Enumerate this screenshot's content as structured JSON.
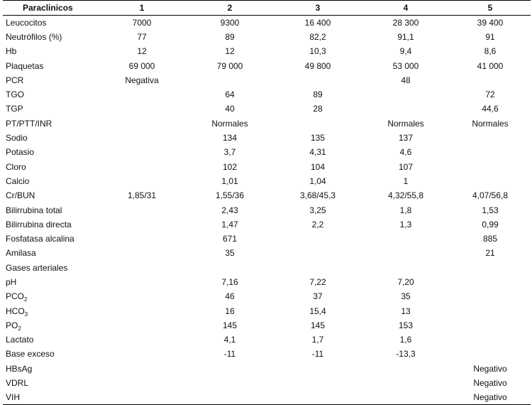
{
  "table": {
    "columns": [
      "Paraclinicos",
      "1",
      "2",
      "3",
      "4",
      "5"
    ],
    "rows": [
      {
        "name": "Leucocitos",
        "values": [
          "7000",
          "9300",
          "16 400",
          "28 300",
          "39 400"
        ]
      },
      {
        "name": "Neutrófilos (%)",
        "values": [
          "77",
          "89",
          "82,2",
          "91,1",
          "91"
        ]
      },
      {
        "name": "Hb",
        "values": [
          "12",
          "12",
          "10,3",
          "9,4",
          "8,6"
        ]
      },
      {
        "name": "Plaquetas",
        "values": [
          "69 000",
          "79 000",
          "49 800",
          "53 000",
          "41 000"
        ]
      },
      {
        "name": "PCR",
        "values": [
          "Negativa",
          "",
          "",
          "48",
          ""
        ]
      },
      {
        "name": "TGO",
        "values": [
          "",
          "64",
          "89",
          "",
          "72"
        ]
      },
      {
        "name": "TGP",
        "values": [
          "",
          "40",
          "28",
          "",
          "44,6"
        ]
      },
      {
        "name": "PT/PTT/INR",
        "values": [
          "",
          "Normales",
          "",
          "Normales",
          "Normales"
        ]
      },
      {
        "name": "Sodio",
        "values": [
          "",
          "134",
          "135",
          "137",
          ""
        ]
      },
      {
        "name": "Potasio",
        "values": [
          "",
          "3,7",
          "4,31",
          "4,6",
          ""
        ]
      },
      {
        "name": "Cloro",
        "values": [
          "",
          "102",
          "104",
          "107",
          ""
        ]
      },
      {
        "name": "Calcio",
        "values": [
          "",
          "1,01",
          "1,04",
          "1",
          ""
        ]
      },
      {
        "name": "Cr/BUN",
        "values": [
          "1,85/31",
          "1,55/36",
          "3,68/45,3",
          "4,32/55,8",
          "4,07/56,8"
        ]
      },
      {
        "name": "Bilirrubina total",
        "values": [
          "",
          "2,43",
          "3,25",
          "1,8",
          "1,53"
        ]
      },
      {
        "name": "Bilirrubina directa",
        "values": [
          "",
          "1,47",
          "2,2",
          "1,3",
          "0,99"
        ]
      },
      {
        "name": "Fosfatasa alcalina",
        "values": [
          "",
          "671",
          "",
          "",
          "885"
        ]
      },
      {
        "name": "Amilasa",
        "values": [
          "",
          "35",
          "",
          "",
          "21"
        ]
      },
      {
        "name": "Gases arteriales",
        "values": [
          "",
          "",
          "",
          "",
          ""
        ]
      },
      {
        "name": "pH",
        "values": [
          "",
          "7,16",
          "7,22",
          "7,20",
          ""
        ]
      },
      {
        "name": "PCO",
        "sub": "2",
        "values": [
          "",
          "46",
          "37",
          "35",
          ""
        ]
      },
      {
        "name": "HCO",
        "sub": "3",
        "values": [
          "",
          "16",
          "15,4",
          "13",
          ""
        ]
      },
      {
        "name": "PO",
        "sub": "2",
        "values": [
          "",
          "145",
          "145",
          "153",
          ""
        ]
      },
      {
        "name": "Lactato",
        "values": [
          "",
          "4,1",
          "1,7",
          "1,6",
          ""
        ]
      },
      {
        "name": "Base exceso",
        "values": [
          "",
          "-11",
          "-11",
          "-13,3",
          ""
        ]
      },
      {
        "name": "HBsAg",
        "values": [
          "",
          "",
          "",
          "",
          "Negativo"
        ]
      },
      {
        "name": "VDRL",
        "values": [
          "",
          "",
          "",
          "",
          "Negativo"
        ]
      },
      {
        "name": "VIH",
        "values": [
          "",
          "",
          "",
          "",
          "Negativo"
        ]
      }
    ]
  }
}
